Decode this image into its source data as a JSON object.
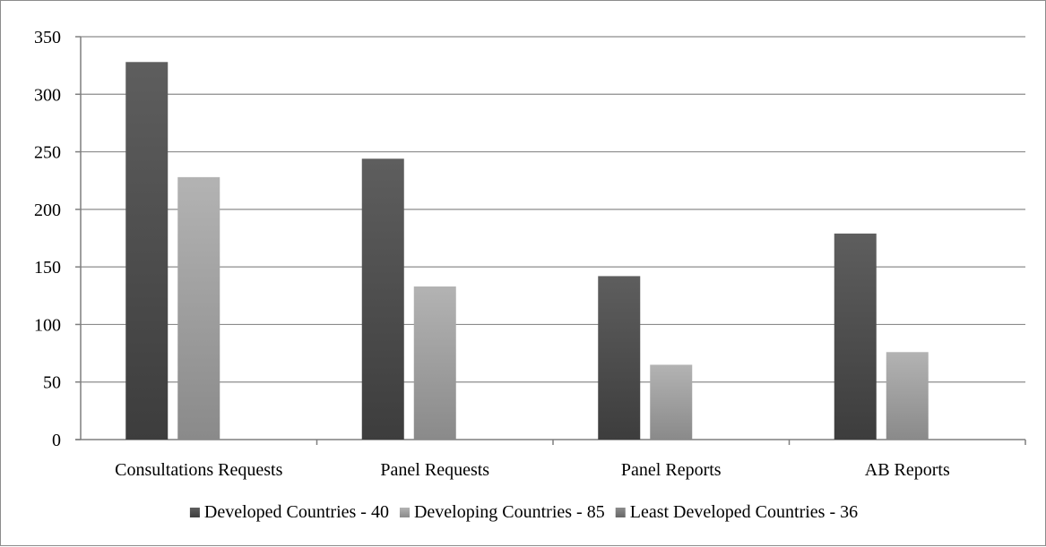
{
  "chart_data": {
    "type": "bar",
    "title": "",
    "xlabel": "",
    "ylabel": "",
    "categories": [
      "Consultations Requests",
      "Panel Requests",
      "Panel Reports",
      "AB Reports"
    ],
    "series": [
      {
        "name": "Developed Countries - 40",
        "values": [
          328,
          244,
          142,
          179
        ],
        "color": "#525252"
      },
      {
        "name": "Developing Countries - 85",
        "values": [
          228,
          133,
          65,
          76
        ],
        "color": "#a6a6a6"
      },
      {
        "name": "Least Developed Countries - 36",
        "values": [
          0,
          0,
          0,
          0
        ],
        "color": "#7f7f7f"
      }
    ],
    "ylim": [
      0,
      350
    ],
    "yticks": [
      0,
      50,
      100,
      150,
      200,
      250,
      300,
      350
    ],
    "grid": true,
    "legend_position": "bottom"
  }
}
